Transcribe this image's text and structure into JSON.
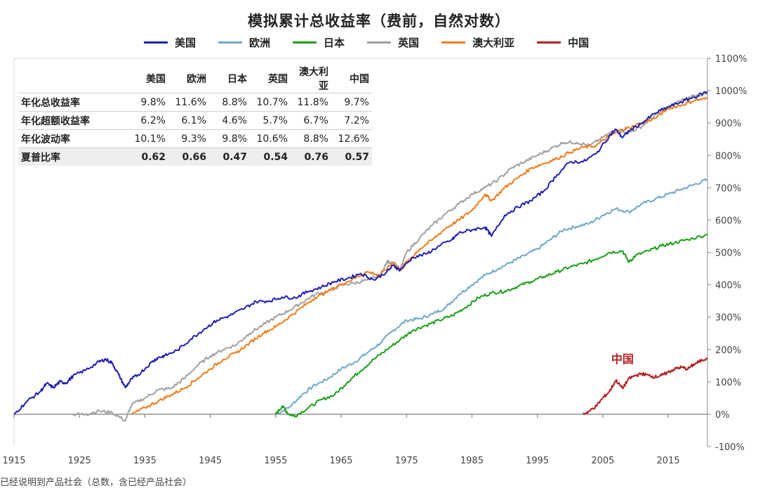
{
  "chart_data": {
    "type": "line",
    "title": "模拟累计总收益率（费前，自然对数）",
    "xlim": [
      1915,
      2021
    ],
    "ylim": [
      -100,
      1100
    ],
    "x_ticks": [
      "1915",
      "1925",
      "1935",
      "1945",
      "1955",
      "1965",
      "1975",
      "1985",
      "1995",
      "2005",
      "2015"
    ],
    "y_ticks": [
      "-100%",
      "0%",
      "100%",
      "200%",
      "300%",
      "400%",
      "500%",
      "600%",
      "700%",
      "800%",
      "900%",
      "1000%",
      "1100%"
    ],
    "legend_position": "top",
    "series": [
      {
        "name": "美国",
        "color": "#1f1fb4",
        "points": [
          [
            1915,
            0
          ],
          [
            1917,
            40
          ],
          [
            1919,
            70
          ],
          [
            1920,
            95
          ],
          [
            1921,
            82
          ],
          [
            1922,
            100
          ],
          [
            1923,
            97
          ],
          [
            1924,
            118
          ],
          [
            1926,
            137
          ],
          [
            1928,
            162
          ],
          [
            1929,
            170
          ],
          [
            1930,
            158
          ],
          [
            1931,
            122
          ],
          [
            1932,
            82
          ],
          [
            1933,
            110
          ],
          [
            1934,
            122
          ],
          [
            1936,
            160
          ],
          [
            1937,
            175
          ],
          [
            1938,
            180
          ],
          [
            1940,
            198
          ],
          [
            1942,
            232
          ],
          [
            1944,
            262
          ],
          [
            1946,
            290
          ],
          [
            1948,
            305
          ],
          [
            1950,
            325
          ],
          [
            1952,
            348
          ],
          [
            1954,
            350
          ],
          [
            1956,
            362
          ],
          [
            1958,
            360
          ],
          [
            1960,
            380
          ],
          [
            1962,
            393
          ],
          [
            1964,
            410
          ],
          [
            1966,
            420
          ],
          [
            1968,
            435
          ],
          [
            1970,
            415
          ],
          [
            1972,
            440
          ],
          [
            1973,
            460
          ],
          [
            1974,
            445
          ],
          [
            1976,
            485
          ],
          [
            1978,
            495
          ],
          [
            1980,
            520
          ],
          [
            1982,
            540
          ],
          [
            1983,
            560
          ],
          [
            1985,
            570
          ],
          [
            1987,
            578
          ],
          [
            1988,
            550
          ],
          [
            1990,
            615
          ],
          [
            1992,
            640
          ],
          [
            1994,
            660
          ],
          [
            1996,
            690
          ],
          [
            1998,
            740
          ],
          [
            2000,
            780
          ],
          [
            2002,
            780
          ],
          [
            2004,
            805
          ],
          [
            2006,
            860
          ],
          [
            2007,
            880
          ],
          [
            2008,
            855
          ],
          [
            2009,
            875
          ],
          [
            2011,
            900
          ],
          [
            2013,
            930
          ],
          [
            2015,
            950
          ],
          [
            2017,
            965
          ],
          [
            2019,
            980
          ],
          [
            2021,
            997
          ]
        ]
      },
      {
        "name": "欧洲",
        "color": "#6fa8c8",
        "points": [
          [
            1955,
            0
          ],
          [
            1957,
            20
          ],
          [
            1959,
            60
          ],
          [
            1961,
            90
          ],
          [
            1963,
            110
          ],
          [
            1965,
            140
          ],
          [
            1967,
            160
          ],
          [
            1969,
            190
          ],
          [
            1971,
            220
          ],
          [
            1973,
            260
          ],
          [
            1975,
            290
          ],
          [
            1977,
            295
          ],
          [
            1979,
            310
          ],
          [
            1981,
            330
          ],
          [
            1983,
            370
          ],
          [
            1985,
            400
          ],
          [
            1987,
            430
          ],
          [
            1989,
            450
          ],
          [
            1991,
            470
          ],
          [
            1993,
            490
          ],
          [
            1995,
            510
          ],
          [
            1997,
            540
          ],
          [
            1999,
            570
          ],
          [
            2001,
            580
          ],
          [
            2003,
            590
          ],
          [
            2005,
            615
          ],
          [
            2007,
            635
          ],
          [
            2009,
            625
          ],
          [
            2011,
            650
          ],
          [
            2013,
            665
          ],
          [
            2015,
            680
          ],
          [
            2017,
            695
          ],
          [
            2019,
            710
          ],
          [
            2021,
            725
          ]
        ]
      },
      {
        "name": "日本",
        "color": "#1aa01a",
        "points": [
          [
            1955,
            0
          ],
          [
            1956,
            25
          ],
          [
            1957,
            0
          ],
          [
            1958,
            -5
          ],
          [
            1960,
            20
          ],
          [
            1962,
            45
          ],
          [
            1964,
            60
          ],
          [
            1966,
            100
          ],
          [
            1968,
            135
          ],
          [
            1970,
            170
          ],
          [
            1972,
            200
          ],
          [
            1974,
            230
          ],
          [
            1976,
            260
          ],
          [
            1978,
            275
          ],
          [
            1980,
            290
          ],
          [
            1982,
            305
          ],
          [
            1984,
            330
          ],
          [
            1986,
            360
          ],
          [
            1988,
            375
          ],
          [
            1990,
            380
          ],
          [
            1992,
            395
          ],
          [
            1994,
            410
          ],
          [
            1996,
            425
          ],
          [
            1998,
            440
          ],
          [
            2000,
            455
          ],
          [
            2002,
            465
          ],
          [
            2004,
            480
          ],
          [
            2006,
            500
          ],
          [
            2008,
            505
          ],
          [
            2009,
            470
          ],
          [
            2010,
            490
          ],
          [
            2012,
            505
          ],
          [
            2014,
            520
          ],
          [
            2016,
            530
          ],
          [
            2018,
            540
          ],
          [
            2021,
            555
          ]
        ]
      },
      {
        "name": "英国",
        "color": "#a0a0a0",
        "points": [
          [
            1924,
            0
          ],
          [
            1926,
            0
          ],
          [
            1928,
            10
          ],
          [
            1930,
            5
          ],
          [
            1932,
            -20
          ],
          [
            1933,
            30
          ],
          [
            1935,
            50
          ],
          [
            1937,
            75
          ],
          [
            1939,
            80
          ],
          [
            1941,
            110
          ],
          [
            1943,
            150
          ],
          [
            1945,
            180
          ],
          [
            1947,
            200
          ],
          [
            1949,
            215
          ],
          [
            1951,
            250
          ],
          [
            1953,
            275
          ],
          [
            1955,
            300
          ],
          [
            1957,
            320
          ],
          [
            1959,
            345
          ],
          [
            1961,
            370
          ],
          [
            1963,
            380
          ],
          [
            1965,
            400
          ],
          [
            1967,
            405
          ],
          [
            1969,
            415
          ],
          [
            1971,
            430
          ],
          [
            1972,
            470
          ],
          [
            1973,
            470
          ],
          [
            1974,
            445
          ],
          [
            1975,
            500
          ],
          [
            1977,
            545
          ],
          [
            1979,
            585
          ],
          [
            1981,
            620
          ],
          [
            1983,
            650
          ],
          [
            1985,
            680
          ],
          [
            1987,
            700
          ],
          [
            1989,
            725
          ],
          [
            1991,
            760
          ],
          [
            1993,
            780
          ],
          [
            1995,
            800
          ],
          [
            1997,
            820
          ],
          [
            1999,
            840
          ],
          [
            2001,
            840
          ],
          [
            2003,
            830
          ],
          [
            2005,
            855
          ],
          [
            2007,
            880
          ],
          [
            2009,
            870
          ],
          [
            2011,
            890
          ],
          [
            2013,
            925
          ],
          [
            2015,
            945
          ],
          [
            2017,
            970
          ],
          [
            2019,
            985
          ],
          [
            2021,
            990
          ]
        ]
      },
      {
        "name": "澳大利亚",
        "color": "#f07c1a",
        "points": [
          [
            1933,
            0
          ],
          [
            1935,
            20
          ],
          [
            1937,
            40
          ],
          [
            1939,
            60
          ],
          [
            1941,
            80
          ],
          [
            1943,
            110
          ],
          [
            1945,
            140
          ],
          [
            1947,
            170
          ],
          [
            1949,
            190
          ],
          [
            1951,
            220
          ],
          [
            1953,
            250
          ],
          [
            1955,
            270
          ],
          [
            1957,
            300
          ],
          [
            1959,
            330
          ],
          [
            1961,
            360
          ],
          [
            1963,
            380
          ],
          [
            1965,
            400
          ],
          [
            1967,
            420
          ],
          [
            1969,
            440
          ],
          [
            1971,
            430
          ],
          [
            1973,
            470
          ],
          [
            1974,
            445
          ],
          [
            1975,
            470
          ],
          [
            1977,
            510
          ],
          [
            1979,
            540
          ],
          [
            1981,
            575
          ],
          [
            1983,
            600
          ],
          [
            1985,
            630
          ],
          [
            1987,
            680
          ],
          [
            1988,
            660
          ],
          [
            1990,
            700
          ],
          [
            1992,
            730
          ],
          [
            1994,
            760
          ],
          [
            1996,
            775
          ],
          [
            1998,
            790
          ],
          [
            2000,
            810
          ],
          [
            2002,
            825
          ],
          [
            2004,
            830
          ],
          [
            2006,
            860
          ],
          [
            2008,
            880
          ],
          [
            2009,
            885
          ],
          [
            2011,
            900
          ],
          [
            2013,
            915
          ],
          [
            2015,
            945
          ],
          [
            2017,
            955
          ],
          [
            2019,
            970
          ],
          [
            2021,
            975
          ]
        ]
      },
      {
        "name": "中国",
        "color": "#b22222",
        "points": [
          [
            2002,
            0
          ],
          [
            2003,
            10
          ],
          [
            2004,
            25
          ],
          [
            2005,
            50
          ],
          [
            2006,
            70
          ],
          [
            2007,
            105
          ],
          [
            2008,
            80
          ],
          [
            2009,
            110
          ],
          [
            2010,
            120
          ],
          [
            2011,
            125
          ],
          [
            2012,
            120
          ],
          [
            2013,
            115
          ],
          [
            2014,
            120
          ],
          [
            2015,
            130
          ],
          [
            2016,
            140
          ],
          [
            2017,
            145
          ],
          [
            2018,
            140
          ],
          [
            2019,
            155
          ],
          [
            2020,
            165
          ],
          [
            2021,
            175
          ]
        ]
      }
    ],
    "annotation": "中国"
  },
  "table": {
    "headers": [
      "美国",
      "欧洲",
      "日本",
      "英国",
      "澳大利亚",
      "中国"
    ],
    "rows": [
      {
        "label": "年化总收益率",
        "values": [
          "9.8%",
          "11.6%",
          "8.8%",
          "10.7%",
          "11.8%",
          "9.7%"
        ]
      },
      {
        "label": "年化超额收益率",
        "values": [
          "6.2%",
          "6.1%",
          "4.6%",
          "5.7%",
          "6.7%",
          "7.2%"
        ]
      },
      {
        "label": "年化波动率",
        "values": [
          "10.1%",
          "9.3%",
          "9.8%",
          "10.6%",
          "8.8%",
          "12.6%"
        ]
      },
      {
        "label": "夏普比率",
        "values": [
          "0.62",
          "0.66",
          "0.47",
          "0.54",
          "0.76",
          "0.57"
        ]
      }
    ]
  },
  "footnote": "已经说明到产品社会（总数，含已经产品社会）"
}
